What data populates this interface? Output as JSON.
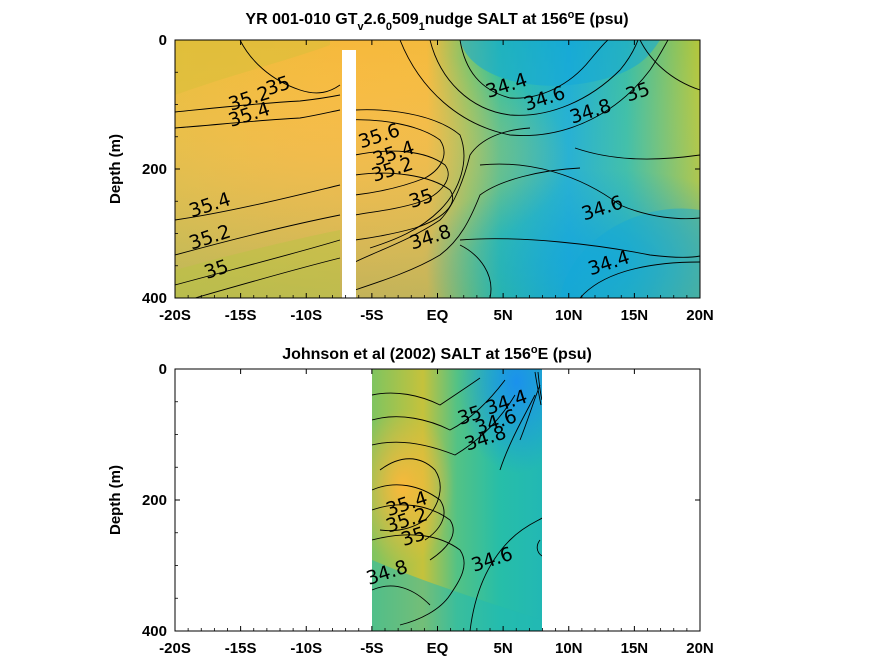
{
  "chart_data": [
    {
      "type": "heatmap",
      "title": "YR 001-010 GT<sub>v</sub>2.6<sub>0</sub>509<sub>1</sub> nudge SALT at 156<sup>o</sup>E (psu)",
      "title_parts": [
        "YR 001-010 GT",
        "v",
        "2.6",
        "0",
        "509",
        "1",
        "nudge SALT at 156",
        "o",
        "E (psu)"
      ],
      "ylabel": "Depth (m)",
      "xlim": [
        -20,
        20
      ],
      "ylim": [
        0,
        400
      ],
      "y_reversed": true,
      "xticks": [
        -20,
        -15,
        -10,
        -5,
        0,
        5,
        10,
        15,
        20
      ],
      "xtick_labels": [
        "-20S",
        "-15S",
        "-10S",
        "-5S",
        "EQ",
        "5N",
        "10N",
        "15N",
        "20N"
      ],
      "yticks": [
        0,
        200,
        400
      ],
      "ytick_labels": [
        "0",
        "200",
        "400"
      ],
      "gap_x": [
        -7.7,
        -6.6
      ],
      "colormap": "parula",
      "clim": [
        34.0,
        35.8
      ],
      "contour_labels": [
        {
          "text": "35",
          "x": -12.0,
          "y": 80
        },
        {
          "text": "35.2",
          "x": -14.2,
          "y": 100
        },
        {
          "text": "35.4",
          "x": -14.2,
          "y": 125
        },
        {
          "text": "35.6",
          "x": -4.3,
          "y": 158
        },
        {
          "text": "35.4",
          "x": -3.2,
          "y": 185
        },
        {
          "text": "35.2",
          "x": -3.3,
          "y": 210
        },
        {
          "text": "35",
          "x": -1.1,
          "y": 255
        },
        {
          "text": "34.8",
          "x": -0.4,
          "y": 315
        },
        {
          "text": "35.4",
          "x": -17.2,
          "y": 265
        },
        {
          "text": "35.2",
          "x": -17.2,
          "y": 315
        },
        {
          "text": "35",
          "x": -16.7,
          "y": 365
        },
        {
          "text": "34.4",
          "x": 5.4,
          "y": 80
        },
        {
          "text": "34.6",
          "x": 8.3,
          "y": 100
        },
        {
          "text": "34.8",
          "x": 11.8,
          "y": 120
        },
        {
          "text": "35",
          "x": 15.4,
          "y": 90
        },
        {
          "text": "34.6",
          "x": 12.7,
          "y": 270
        },
        {
          "text": "34.4",
          "x": 13.2,
          "y": 355
        }
      ]
    },
    {
      "type": "heatmap",
      "title": "Johnson et al (2002) SALT at 156<sup>o</sup>E (psu)",
      "title_parts": [
        "Johnson et al (2002) SALT at 156",
        "o",
        "E (psu)"
      ],
      "ylabel": "Depth (m)",
      "xlim": [
        -20,
        20
      ],
      "ylim": [
        0,
        400
      ],
      "y_reversed": true,
      "xticks": [
        -20,
        -15,
        -10,
        -5,
        0,
        5,
        10,
        15,
        20
      ],
      "xtick_labels": [
        "-20S",
        "-15S",
        "-10S",
        "-5S",
        "EQ",
        "5N",
        "10N",
        "15N",
        "20N"
      ],
      "yticks": [
        0,
        200,
        400
      ],
      "ytick_labels": [
        "0",
        "200",
        "400"
      ],
      "data_x_range": [
        -5,
        8
      ],
      "colormap": "parula",
      "clim": [
        34.0,
        35.8
      ],
      "contour_labels": [
        {
          "text": "34.4",
          "x": 5.4,
          "y": 60
        },
        {
          "text": "34.6",
          "x": 4.6,
          "y": 90
        },
        {
          "text": "34.8",
          "x": 3.8,
          "y": 115
        },
        {
          "text": "35",
          "x": 2.6,
          "y": 80
        },
        {
          "text": "35.4",
          "x": -2.2,
          "y": 215
        },
        {
          "text": "35.2",
          "x": -2.2,
          "y": 240
        },
        {
          "text": "35",
          "x": -1.7,
          "y": 265
        },
        {
          "text": "34.8",
          "x": -3.7,
          "y": 320
        },
        {
          "text": "34.6",
          "x": 4.3,
          "y": 300
        }
      ]
    }
  ]
}
